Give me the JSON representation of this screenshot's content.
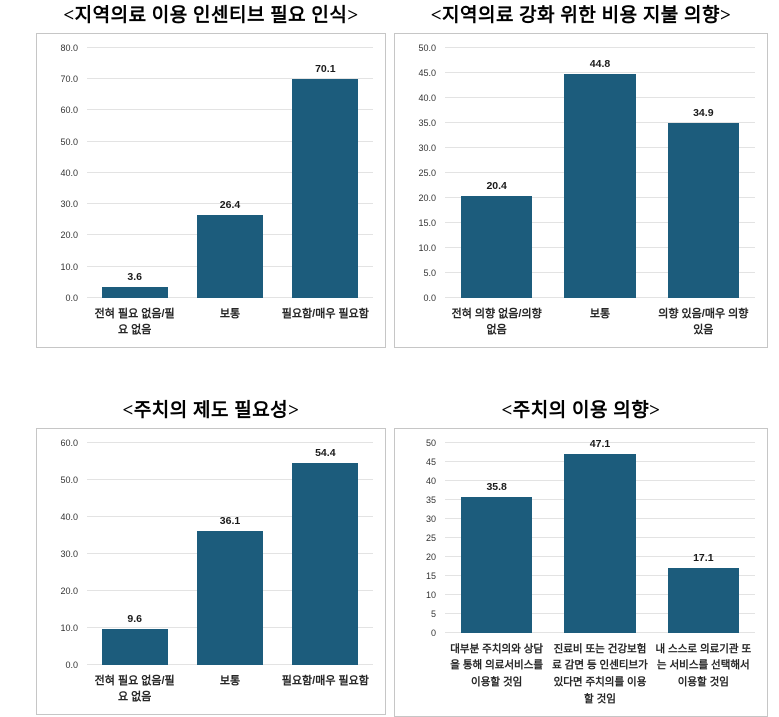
{
  "colors": {
    "bar": "#1c5c7c",
    "grid": "#e3e3e3",
    "panel_border": "#c6c6c6",
    "value_label": "#1a1a1a",
    "tick_label": "#333333",
    "category_label": "#262626",
    "title": "#000000"
  },
  "chart_data": [
    {
      "type": "bar",
      "title": "<지역의료 이용 인센티브 필요 인식>",
      "categories": [
        "전혀 필요 없음/필요 없음",
        "보통",
        "필요함/매우 필요함"
      ],
      "values": [
        3.6,
        26.4,
        70.1
      ],
      "ylim": [
        0,
        80
      ],
      "ytick_step": 10,
      "ytick_decimals": 1,
      "value_decimals": 1,
      "grid": true,
      "legend": false
    },
    {
      "type": "bar",
      "title": "<지역의료 강화 위한 비용 지불 의향>",
      "categories": [
        "전혀 의향 없음/의향 없음",
        "보통",
        "의향 있음/매우 의향 있음"
      ],
      "values": [
        20.4,
        44.8,
        34.9
      ],
      "ylim": [
        0,
        50
      ],
      "ytick_step": 5,
      "ytick_decimals": 1,
      "value_decimals": 1,
      "grid": true,
      "legend": false
    },
    {
      "type": "bar",
      "title": "<주치의 제도 필요성>",
      "categories": [
        "전혀 필요 없음/필요 없음",
        "보통",
        "필요함/매우 필요함"
      ],
      "values": [
        9.6,
        36.1,
        54.4
      ],
      "ylim": [
        0,
        60
      ],
      "ytick_step": 10,
      "ytick_decimals": 1,
      "value_decimals": 1,
      "grid": true,
      "legend": false
    },
    {
      "type": "bar",
      "title": "<주치의 이용 의향>",
      "categories": [
        "대부분 주치의와 상담을 통해 의료서비스를 이용할 것임",
        "진료비 또는 건강보험료 감면 등 인센티브가 있다면 주치의를 이용할 것임",
        "내 스스로 의료기관 또는 서비스를 선택해서 이용할 것임"
      ],
      "values": [
        35.8,
        47.1,
        17.1
      ],
      "ylim": [
        0,
        50
      ],
      "ytick_step": 5,
      "ytick_decimals": 0,
      "value_decimals": 1,
      "grid": true,
      "legend": false
    }
  ]
}
